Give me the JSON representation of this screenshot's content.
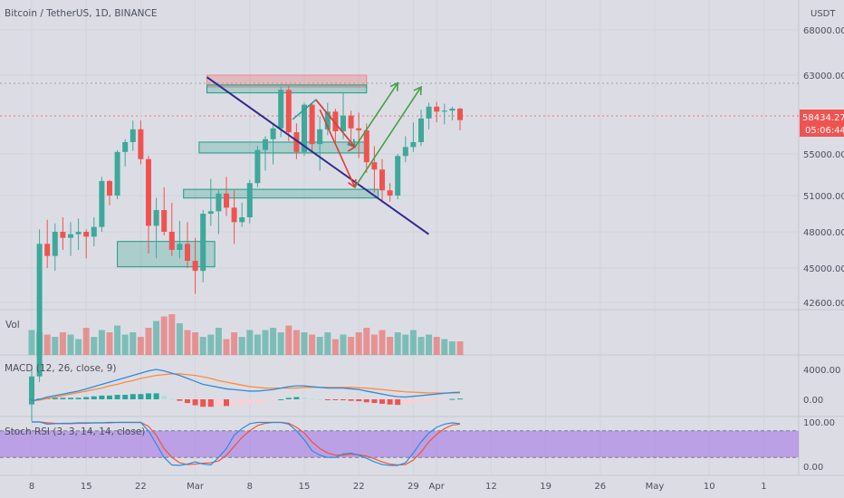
{
  "chart_data": {
    "type": "candlestick",
    "title": "Bitcoin / TetherUS, 1D, BINANCE",
    "currency": "USDT",
    "last_price": "58434.27",
    "countdown": "05:06:44",
    "colors": {
      "up": "#3da89b",
      "down": "#ef5350",
      "background": "#dcdde4",
      "trendline": "#2f2a8f"
    },
    "price_axis": {
      "ticks": [
        {
          "value": 68000,
          "label": "68000.00"
        },
        {
          "value": 63000,
          "label": "63000.00"
        },
        {
          "value": 55000,
          "label": "55000.00"
        },
        {
          "value": 51000,
          "label": "51000.00"
        },
        {
          "value": 48000,
          "label": "48000.00"
        },
        {
          "value": 45000,
          "label": "45000.00"
        },
        {
          "value": 42600,
          "label": "42600.00"
        }
      ]
    },
    "time_axis": {
      "ticks": [
        {
          "i": 0,
          "label": "8"
        },
        {
          "i": 7,
          "label": "15"
        },
        {
          "i": 14,
          "label": "22"
        },
        {
          "i": 21,
          "label": "Mar"
        },
        {
          "i": 28,
          "label": "8"
        },
        {
          "i": 35,
          "label": "15"
        },
        {
          "i": 42,
          "label": "22"
        },
        {
          "i": 49,
          "label": "29"
        },
        {
          "i": 52,
          "label": "Apr"
        },
        {
          "i": 59,
          "label": "12"
        },
        {
          "i": 66,
          "label": "19"
        },
        {
          "i": 73,
          "label": "26"
        },
        {
          "i": 80,
          "label": "May"
        },
        {
          "i": 87,
          "label": "10"
        },
        {
          "i": 94,
          "label": "1"
        }
      ]
    },
    "candles": [
      [
        33500,
        37000,
        32000,
        36000
      ],
      [
        36000,
        48200,
        35500,
        47000
      ],
      [
        47000,
        49000,
        45000,
        46000
      ],
      [
        46000,
        48700,
        44800,
        48000
      ],
      [
        48000,
        49200,
        46500,
        47500
      ],
      [
        47500,
        48800,
        46000,
        47800
      ],
      [
        47800,
        49100,
        46500,
        48000
      ],
      [
        48000,
        48200,
        45800,
        47600
      ],
      [
        47600,
        49200,
        46800,
        48400
      ],
      [
        48400,
        52800,
        48000,
        52400
      ],
      [
        52400,
        52500,
        50200,
        51000
      ],
      [
        51000,
        55400,
        50700,
        55200
      ],
      [
        55200,
        56500,
        53800,
        56200
      ],
      [
        56200,
        58400,
        55300,
        57500
      ],
      [
        57500,
        58400,
        54000,
        54500
      ],
      [
        54500,
        54800,
        46200,
        48500
      ],
      [
        48500,
        50800,
        45800,
        49800
      ],
      [
        49800,
        51800,
        47700,
        48000
      ],
      [
        48000,
        50400,
        46000,
        46500
      ],
      [
        46500,
        48900,
        45800,
        47000
      ],
      [
        47000,
        48800,
        45000,
        45600
      ],
      [
        45600,
        47500,
        43200,
        44800
      ],
      [
        44800,
        49800,
        44000,
        49500
      ],
      [
        49500,
        52600,
        48500,
        49700
      ],
      [
        49700,
        51500,
        47800,
        51200
      ],
      [
        51200,
        52800,
        49300,
        50000
      ],
      [
        50000,
        51500,
        47000,
        48800
      ],
      [
        48800,
        50400,
        48400,
        49200
      ],
      [
        49200,
        52500,
        48700,
        52200
      ],
      [
        52200,
        55800,
        51800,
        55400
      ],
      [
        55400,
        56800,
        53400,
        56500
      ],
      [
        56500,
        58000,
        54000,
        57600
      ],
      [
        57600,
        61800,
        56700,
        61500
      ],
      [
        61500,
        61900,
        56300,
        57200
      ],
      [
        57200,
        58100,
        54500,
        55200
      ],
      [
        55200,
        60200,
        54800,
        60000
      ],
      [
        60000,
        60200,
        55200,
        56000
      ],
      [
        56000,
        58800,
        53400,
        57500
      ],
      [
        57500,
        60200,
        56900,
        59300
      ],
      [
        59300,
        59600,
        56000,
        57300
      ],
      [
        57300,
        61200,
        56500,
        58900
      ],
      [
        58900,
        59400,
        56300,
        57600
      ],
      [
        57600,
        59200,
        54600,
        57400
      ],
      [
        57400,
        58100,
        53200,
        54200
      ],
      [
        54200,
        55800,
        51300,
        53500
      ],
      [
        53500,
        54500,
        50400,
        51500
      ],
      [
        51500,
        52200,
        50500,
        51000
      ],
      [
        51000,
        55000,
        50700,
        54800
      ],
      [
        54800,
        56800,
        54200,
        55700
      ],
      [
        55700,
        58200,
        55200,
        56200
      ],
      [
        56200,
        59500,
        55800,
        58600
      ],
      [
        58600,
        60200,
        57500,
        59800
      ],
      [
        59800,
        60300,
        58200,
        59300
      ],
      [
        59300,
        60100,
        58000,
        59400
      ],
      [
        59400,
        59800,
        58400,
        59600
      ],
      [
        59600,
        59700,
        57400,
        58434
      ]
    ],
    "volume": [
      0.55,
      0.5,
      0.45,
      0.4,
      0.5,
      0.45,
      0.35,
      0.6,
      0.4,
      0.55,
      0.5,
      0.65,
      0.45,
      0.5,
      0.4,
      0.6,
      0.75,
      0.85,
      0.9,
      0.7,
      0.55,
      0.5,
      0.4,
      0.45,
      0.6,
      0.35,
      0.5,
      0.4,
      0.55,
      0.45,
      0.55,
      0.6,
      0.5,
      0.65,
      0.55,
      0.5,
      0.45,
      0.4,
      0.5,
      0.35,
      0.45,
      0.4,
      0.5,
      0.6,
      0.45,
      0.55,
      0.4,
      0.5,
      0.45,
      0.55,
      0.4,
      0.45,
      0.4,
      0.35,
      0.3,
      0.3
    ],
    "volume_label": "Vol",
    "macd": {
      "label": "MACD (12, 26, close, 9)",
      "ticks": [
        {
          "value": 4000,
          "label": "4000.00"
        },
        {
          "value": 0,
          "label": "0.00"
        }
      ],
      "macd": [
        -200,
        0,
        300,
        500,
        700,
        900,
        1100,
        1400,
        1700,
        2000,
        2300,
        2600,
        2900,
        3200,
        3500,
        3800,
        4000,
        3800,
        3500,
        3200,
        2800,
        2400,
        2000,
        1800,
        1600,
        1400,
        1300,
        1200,
        1100,
        1100,
        1200,
        1300,
        1500,
        1700,
        1800,
        1800,
        1700,
        1600,
        1500,
        1500,
        1500,
        1400,
        1300,
        1100,
        900,
        700,
        500,
        350,
        300,
        400,
        500,
        600,
        700,
        800,
        900,
        950
      ],
      "signal": [
        -200,
        -100,
        100,
        300,
        500,
        700,
        900,
        1100,
        1300,
        1500,
        1800,
        2000,
        2300,
        2500,
        2800,
        3000,
        3200,
        3300,
        3400,
        3400,
        3300,
        3200,
        3000,
        2800,
        2500,
        2300,
        2100,
        1900,
        1700,
        1600,
        1500,
        1500,
        1500,
        1500,
        1500,
        1600,
        1600,
        1600,
        1600,
        1600,
        1600,
        1600,
        1550,
        1500,
        1400,
        1300,
        1200,
        1100,
        1000,
        950,
        900,
        850,
        850,
        850,
        850,
        850
      ],
      "hist": [
        0,
        100,
        200,
        200,
        200,
        200,
        200,
        300,
        400,
        500,
        500,
        600,
        600,
        700,
        700,
        800,
        800,
        500,
        100,
        -200,
        -500,
        -800,
        -1000,
        -1000,
        -900,
        -900,
        -800,
        -700,
        -600,
        -500,
        -300,
        -200,
        0,
        200,
        300,
        200,
        100,
        0,
        -100,
        -100,
        -100,
        -200,
        -250,
        -400,
        -500,
        -600,
        -700,
        -750,
        -700,
        -550,
        -400,
        -250,
        -150,
        -50,
        50,
        100
      ]
    },
    "stoch_rsi": {
      "label": "Stoch RSI (3, 3, 14, 14, close)",
      "ticks": [
        {
          "value": 100,
          "label": "100.00"
        },
        {
          "value": 0,
          "label": "0.00"
        }
      ],
      "bands": [
        80,
        20
      ],
      "k": [
        100,
        100,
        95,
        96,
        97,
        97,
        98,
        98,
        98,
        98,
        99,
        99,
        99,
        99,
        99,
        80,
        50,
        20,
        3,
        2,
        5,
        10,
        5,
        3,
        20,
        40,
        70,
        85,
        96,
        99,
        99,
        99,
        99,
        95,
        80,
        60,
        35,
        25,
        20,
        20,
        28,
        30,
        25,
        18,
        10,
        4,
        2,
        2,
        8,
        30,
        55,
        75,
        88,
        95,
        98,
        96
      ],
      "d": [
        100,
        100,
        98,
        97,
        96,
        96,
        97,
        97,
        98,
        98,
        98,
        99,
        99,
        99,
        99,
        90,
        70,
        40,
        20,
        8,
        4,
        5,
        7,
        8,
        12,
        25,
        45,
        65,
        80,
        92,
        97,
        99,
        99,
        97,
        88,
        75,
        55,
        40,
        30,
        25,
        25,
        27,
        26,
        23,
        17,
        10,
        5,
        3,
        4,
        14,
        32,
        55,
        72,
        85,
        93,
        95
      ]
    },
    "zones": [
      {
        "x1": 11,
        "x2": 23.5,
        "y1": 47200,
        "y2": 45100
      },
      {
        "x1": 19.5,
        "x2": 44.5,
        "y1": 51600,
        "y2": 50800
      },
      {
        "x1": 21.5,
        "x2": 43,
        "y1": 56200,
        "y2": 55100
      },
      {
        "x1": 22.5,
        "x2": 43,
        "y1": 63000,
        "y2": 61800
      },
      {
        "x1": 22.5,
        "x2": 43,
        "y1": 62000,
        "y2": 61200
      }
    ],
    "trendline": {
      "p1": [
        22.5,
        62800
      ],
      "p2": [
        44,
        47800
      ]
    },
    "projections": [
      {
        "color": "#2aa39b",
        "pts": [
          [
            33.5,
            58500
          ],
          [
            36.5,
            60500
          ],
          [
            41.5,
            55700
          ]
        ]
      },
      {
        "color": "#e53935",
        "pts": [
          [
            36.5,
            60500
          ],
          [
            41.5,
            55700
          ],
          [
            41.5,
            55700
          ]
        ]
      },
      {
        "color": "#e53935",
        "pts": [
          [
            37,
            59500
          ],
          [
            41.5,
            51800
          ]
        ]
      },
      {
        "color": "#43a047",
        "pts": [
          [
            41.5,
            55700
          ],
          [
            47,
            62200
          ]
        ]
      },
      {
        "color": "#43a047",
        "pts": [
          [
            41.5,
            51800
          ],
          [
            50,
            61800
          ]
        ]
      }
    ]
  }
}
